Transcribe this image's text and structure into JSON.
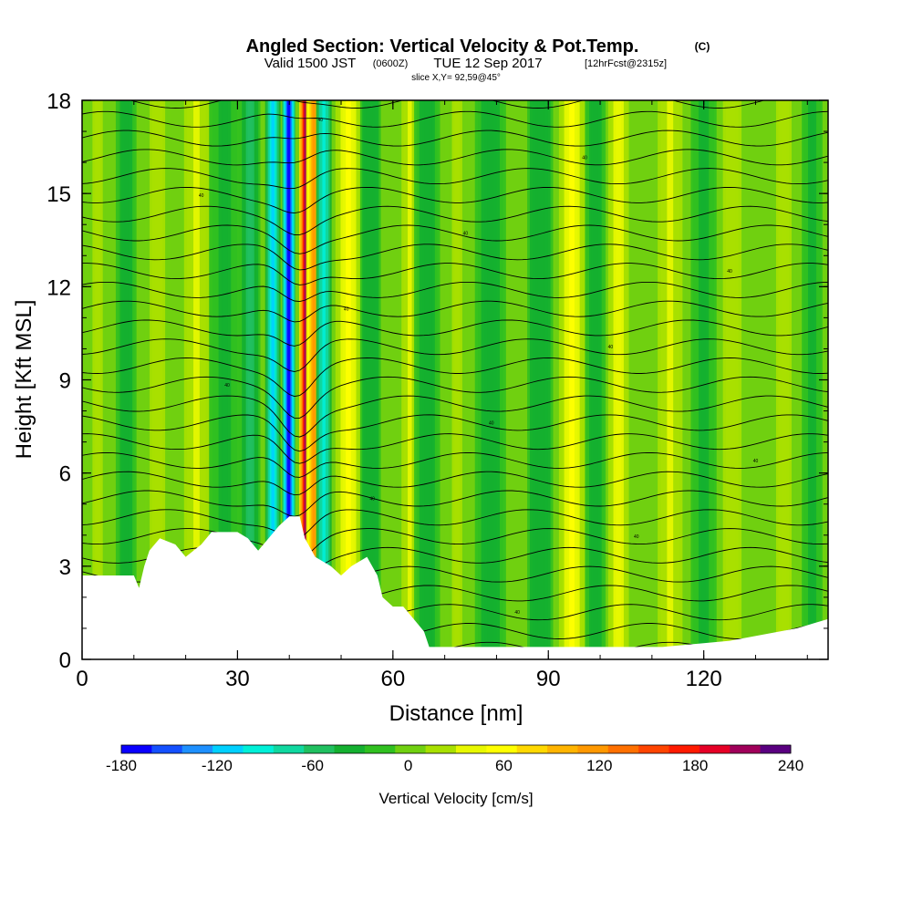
{
  "chart_data": {
    "type": "heatmap",
    "title": "Angled Section: Vertical Velocity & Pot.Temp.",
    "title_unit": "(C)",
    "subtitle_valid": "Valid 1500 JST",
    "subtitle_z": "(0600Z)",
    "subtitle_date": "TUE 12 Sep 2017",
    "subtitle_fcst": "[12hrFcst@2315z]",
    "slice_text": "slice X,Y= 92,59@45°",
    "xlabel": "Distance [nm]",
    "ylabel": "Height [Kft MSL]",
    "xlim": [
      0,
      144
    ],
    "ylim": [
      0,
      18
    ],
    "x_ticks": [
      "0",
      "30",
      "60",
      "90",
      "120"
    ],
    "y_ticks": [
      "0",
      "3",
      "6",
      "9",
      "12",
      "15",
      "18"
    ],
    "colorbar": {
      "label": "Vertical Velocity [cm/s]",
      "range": [
        -180,
        240
      ],
      "step": 20,
      "tick_labels": [
        "-180",
        "-120",
        "-60",
        "0",
        "60",
        "120",
        "180",
        "240"
      ],
      "colors": [
        "#0a00ff",
        "#1450ff",
        "#1e90ff",
        "#00d0ff",
        "#00f0d8",
        "#10d8a0",
        "#20c060",
        "#14b030",
        "#30c020",
        "#70d010",
        "#a8e000",
        "#e8f800",
        "#ffff00",
        "#ffd800",
        "#ffb400",
        "#ff9800",
        "#ff7000",
        "#ff4400",
        "#ff1a00",
        "#e60026",
        "#a0005a",
        "#5a0080"
      ]
    },
    "velocity_bands": [
      {
        "x": 3,
        "w": 2.5,
        "v": 25
      },
      {
        "x": 8,
        "w": 2,
        "v": -35
      },
      {
        "x": 14,
        "w": 2.5,
        "v": 35
      },
      {
        "x": 22,
        "w": 3,
        "v": 45
      },
      {
        "x": 28,
        "w": 3,
        "v": -25
      },
      {
        "x": 33,
        "w": 2,
        "v": -50
      },
      {
        "x": 37,
        "w": 1.5,
        "v": -110
      },
      {
        "x": 39.5,
        "w": 1.3,
        "v": -170
      },
      {
        "x": 42.5,
        "w": 1.2,
        "v": 230
      },
      {
        "x": 44.5,
        "w": 1.5,
        "v": 120
      },
      {
        "x": 47,
        "w": 1.5,
        "v": -90
      },
      {
        "x": 52,
        "w": 2.5,
        "v": 70
      },
      {
        "x": 56,
        "w": 2,
        "v": -40
      },
      {
        "x": 63,
        "w": 2,
        "v": 40
      },
      {
        "x": 66,
        "w": 2.5,
        "v": -35
      },
      {
        "x": 72,
        "w": 2.5,
        "v": 25
      },
      {
        "x": 79,
        "w": 3,
        "v": -30
      },
      {
        "x": 89,
        "w": 2.5,
        "v": -40
      },
      {
        "x": 95,
        "w": 2.5,
        "v": 70
      },
      {
        "x": 99,
        "w": 2,
        "v": -30
      },
      {
        "x": 103,
        "w": 2.5,
        "v": 50
      },
      {
        "x": 113,
        "w": 3,
        "v": 45
      },
      {
        "x": 120,
        "w": 2.5,
        "v": -25
      },
      {
        "x": 126,
        "w": 3,
        "v": 30
      },
      {
        "x": 136,
        "w": 2.5,
        "v": 35
      },
      {
        "x": 141,
        "w": 2,
        "v": -25
      }
    ],
    "terrain": [
      [
        0,
        2.7
      ],
      [
        10,
        2.7
      ],
      [
        11,
        2.3
      ],
      [
        12,
        3.0
      ],
      [
        13,
        3.5
      ],
      [
        15,
        3.9
      ],
      [
        18,
        3.7
      ],
      [
        20,
        3.3
      ],
      [
        23,
        3.7
      ],
      [
        25,
        4.1
      ],
      [
        30,
        4.1
      ],
      [
        32,
        3.9
      ],
      [
        34,
        3.5
      ],
      [
        36,
        3.9
      ],
      [
        38,
        4.3
      ],
      [
        40,
        4.6
      ],
      [
        42,
        4.6
      ],
      [
        43,
        3.9
      ],
      [
        45,
        3.3
      ],
      [
        48,
        3.0
      ],
      [
        50,
        2.7
      ],
      [
        52,
        3.0
      ],
      [
        55,
        3.3
      ],
      [
        57,
        2.7
      ],
      [
        58,
        2.0
      ],
      [
        60,
        1.7
      ],
      [
        62,
        1.7
      ],
      [
        64,
        1.3
      ],
      [
        66,
        0.9
      ],
      [
        67,
        0.4
      ],
      [
        70,
        0.4
      ],
      [
        88,
        0.4
      ],
      [
        112,
        0.4
      ],
      [
        125,
        0.6
      ],
      [
        138,
        1.0
      ],
      [
        144,
        1.3
      ]
    ],
    "isentropes": {
      "count": 30,
      "label_text": "40"
    }
  }
}
